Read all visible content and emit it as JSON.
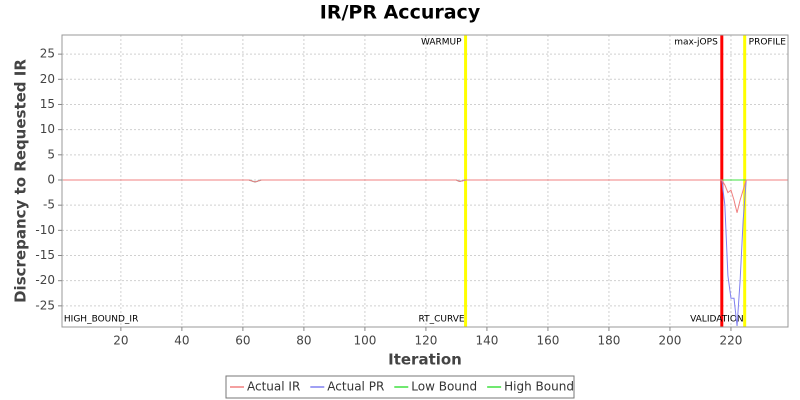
{
  "chart_data": {
    "type": "line",
    "title": "IR/PR Accuracy",
    "x_label": "Iteration",
    "y_label": "Discrepancy to Requested IR",
    "x": [
      1,
      62,
      64,
      66,
      130,
      131,
      133,
      217,
      218,
      219,
      220,
      221,
      222,
      223,
      224,
      225,
      239
    ],
    "series": [
      {
        "name": "Actual IR",
        "color": "#f08080",
        "values": [
          0,
          0,
          -0.4,
          0,
          0,
          -0.3,
          0,
          0,
          -1,
          -2.5,
          -2,
          -4,
          -6.5,
          -4,
          -2,
          0,
          0
        ]
      },
      {
        "name": "Actual PR",
        "color": "#8080f0",
        "values": [
          0,
          0,
          -0.4,
          0,
          0,
          -0.3,
          0,
          0,
          -5,
          -19,
          -23.5,
          -23.5,
          -29,
          -20,
          -8,
          0,
          0
        ]
      },
      {
        "name": "Low Bound",
        "color": "#40e040",
        "values": [
          0,
          0,
          -0.4,
          0,
          0,
          -0.3,
          0,
          0,
          0,
          0,
          0,
          0,
          0,
          0,
          0,
          0,
          0
        ]
      },
      {
        "name": "High Bound",
        "color": "#40e040",
        "values": [
          0,
          0,
          -0.4,
          0,
          0,
          -0.3,
          0,
          0,
          0,
          0,
          0,
          0,
          0,
          0,
          0,
          0,
          0
        ]
      }
    ],
    "markers": [
      {
        "x": 1,
        "bottom_label": "HIGH_BOUND_IR"
      },
      {
        "x": 133,
        "color": "#ffff00",
        "top_label": "WARMUP",
        "bottom_label": "RT_CURVE"
      },
      {
        "x": 217,
        "color": "#ff0000",
        "top_label": "max-jOPS"
      },
      {
        "x": 224.5,
        "color": "#ffff00",
        "top_label": "PROFILE",
        "bottom_label": "VALIDATION"
      }
    ],
    "xlim": [
      0.7,
      238.7
    ],
    "ylim": [
      -29.2,
      28.8
    ],
    "xticks": [
      20,
      40,
      60,
      80,
      100,
      120,
      140,
      160,
      180,
      200,
      220
    ],
    "yticks": [
      -25,
      -20,
      -15,
      -10,
      -5,
      0,
      5,
      10,
      15,
      20,
      25
    ],
    "grid": true
  }
}
